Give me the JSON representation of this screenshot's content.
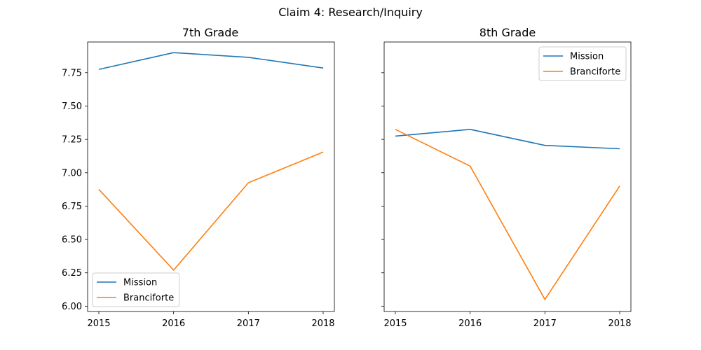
{
  "figure": {
    "title": "Claim 4: Research/Inquiry"
  },
  "colors": {
    "Mission": "#1f77b4",
    "Branciforte": "#ff7f0e"
  },
  "chart_data": [
    {
      "type": "line",
      "title": "7th Grade",
      "xlabel": "",
      "ylabel": "",
      "x": [
        2015,
        2016,
        2017,
        2018
      ],
      "series": [
        {
          "name": "Mission",
          "values": [
            7.775,
            7.9,
            7.865,
            7.785
          ]
        },
        {
          "name": "Branciforte",
          "values": [
            6.875,
            6.27,
            6.925,
            7.155
          ]
        }
      ],
      "xticks": [
        "2015",
        "2016",
        "2017",
        "2018"
      ],
      "yticks": [
        "6.00",
        "6.25",
        "6.50",
        "6.75",
        "7.00",
        "7.25",
        "7.50",
        "7.75"
      ],
      "ylim": [
        5.96,
        7.98
      ],
      "legend": "lower left",
      "grid": false
    },
    {
      "type": "line",
      "title": "8th Grade",
      "xlabel": "",
      "ylabel": "",
      "x": [
        2015,
        2016,
        2017,
        2018
      ],
      "series": [
        {
          "name": "Mission",
          "values": [
            7.275,
            7.325,
            7.205,
            7.18
          ]
        },
        {
          "name": "Branciforte",
          "values": [
            7.325,
            7.05,
            6.05,
            6.9
          ]
        }
      ],
      "xticks": [
        "2015",
        "2016",
        "2017",
        "2018"
      ],
      "yticks": [],
      "ylim": [
        5.96,
        7.98
      ],
      "legend": "upper right",
      "grid": false
    }
  ]
}
